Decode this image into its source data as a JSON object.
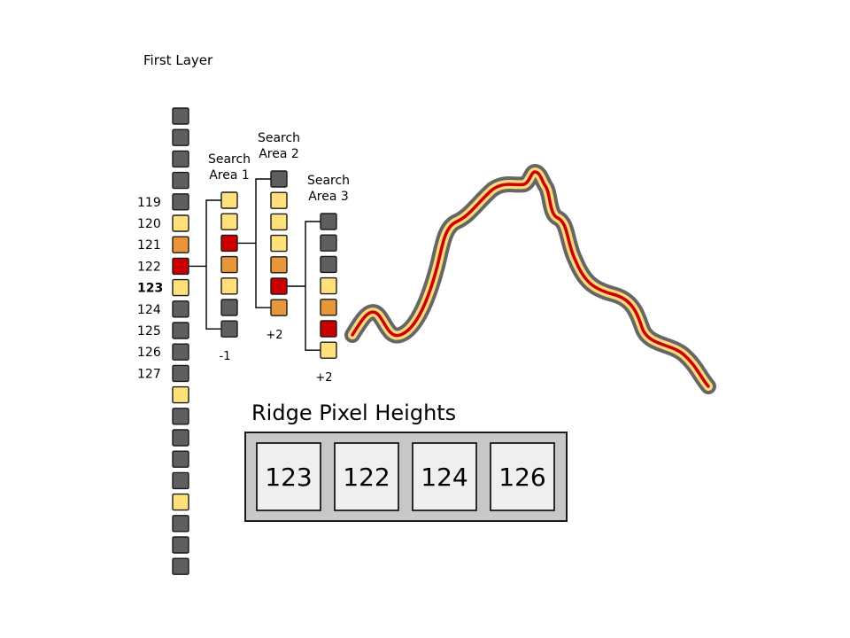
{
  "title": "First Layer",
  "colors": {
    "gray": "#5f5f5f",
    "yellow": "#ffe07a",
    "orange": "#e8963a",
    "red": "#cc0000",
    "outline": "#1a1a1a",
    "panel": "#c8c8c8",
    "cell": "#efefef"
  },
  "first_layer": {
    "row_labels": [
      "119",
      "120",
      "121",
      "122",
      "123",
      "124",
      "125",
      "126",
      "127"
    ],
    "selected_label": "123",
    "cells": [
      "gray",
      "gray",
      "gray",
      "gray",
      "gray",
      "yellow",
      "orange",
      "red",
      "yellow",
      "gray",
      "gray",
      "gray",
      "gray",
      "yellow",
      "gray",
      "gray",
      "gray",
      "gray",
      "yellow",
      "gray",
      "gray",
      "gray"
    ]
  },
  "search_areas": [
    {
      "line1": "Search",
      "line2": "Area 1",
      "offset": "-1",
      "cells": [
        "yellow",
        "yellow",
        "red",
        "orange",
        "yellow",
        "gray",
        "gray"
      ]
    },
    {
      "line1": "Search",
      "line2": "Area 2",
      "offset": "+2",
      "cells": [
        "gray",
        "yellow",
        "yellow",
        "yellow",
        "orange",
        "red",
        "orange"
      ]
    },
    {
      "line1": "Search",
      "line2": "Area 3",
      "offset": "+2",
      "cells": [
        "gray",
        "gray",
        "gray",
        "yellow",
        "orange",
        "red",
        "yellow"
      ]
    }
  ],
  "ridge": {
    "title": "Ridge Pixel Heights",
    "values": [
      "123",
      "122",
      "124",
      "126"
    ]
  }
}
